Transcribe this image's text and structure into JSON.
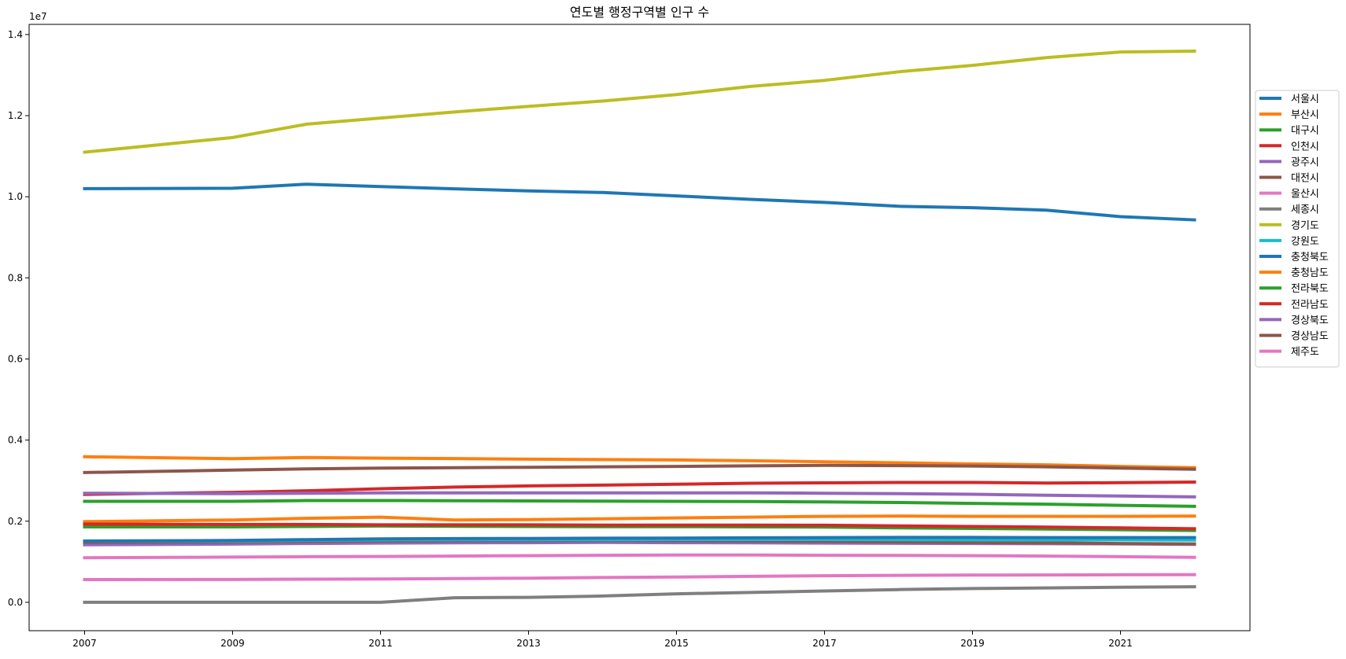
{
  "chart_data": {
    "type": "line",
    "title": "연도별 행정구역별 인구 수",
    "xlabel": "",
    "ylabel": "",
    "y_offset_text": "1e7",
    "xlim": [
      2006.25,
      2022.75
    ],
    "ylim": [
      -700000,
      14250000
    ],
    "x_ticks": [
      2007,
      2009,
      2011,
      2013,
      2015,
      2017,
      2019,
      2021
    ],
    "y_ticks": [
      {
        "value": 0,
        "label": "0.0"
      },
      {
        "value": 2000000,
        "label": "0.2"
      },
      {
        "value": 4000000,
        "label": "0.4"
      },
      {
        "value": 6000000,
        "label": "0.6"
      },
      {
        "value": 8000000,
        "label": "0.8"
      },
      {
        "value": 10000000,
        "label": "1.0"
      },
      {
        "value": 12000000,
        "label": "1.2"
      },
      {
        "value": 14000000,
        "label": "1.4"
      }
    ],
    "grid": false,
    "legend_position": "right",
    "x": [
      2007,
      2009,
      2010,
      2011,
      2012,
      2013,
      2014,
      2015,
      2016,
      2017,
      2018,
      2019,
      2020,
      2021,
      2022
    ],
    "series": [
      {
        "name": "서울시",
        "color": "#1f77b4",
        "values": [
          10200000,
          10210000,
          10310000,
          10250000,
          10195000,
          10145000,
          10105000,
          10020000,
          9935000,
          9860000,
          9765000,
          9730000,
          9670000,
          9510000,
          9430000
        ]
      },
      {
        "name": "부산시",
        "color": "#ff7f0e",
        "values": [
          3590000,
          3540000,
          3570000,
          3555000,
          3545000,
          3530000,
          3520000,
          3510000,
          3490000,
          3465000,
          3440000,
          3410000,
          3390000,
          3350000,
          3320000
        ]
      },
      {
        "name": "대구시",
        "color": "#2ca02c",
        "values": [
          2490000,
          2490000,
          2510000,
          2510000,
          2505000,
          2500000,
          2495000,
          2490000,
          2485000,
          2475000,
          2460000,
          2440000,
          2420000,
          2390000,
          2365000
        ]
      },
      {
        "name": "인천시",
        "color": "#d62728",
        "values": [
          2660000,
          2710000,
          2750000,
          2800000,
          2840000,
          2870000,
          2890000,
          2910000,
          2935000,
          2945000,
          2955000,
          2955000,
          2940000,
          2950000,
          2965000
        ]
      },
      {
        "name": "광주시",
        "color": "#9467bd",
        "values": [
          1420000,
          1435000,
          1450000,
          1460000,
          1465000,
          1470000,
          1475000,
          1470000,
          1465000,
          1460000,
          1455000,
          1450000,
          1445000,
          1440000,
          1430000
        ]
      },
      {
        "name": "대전시",
        "color": "#8c564b",
        "values": [
          1480000,
          1490000,
          1500000,
          1510000,
          1515000,
          1520000,
          1525000,
          1520000,
          1510000,
          1500000,
          1490000,
          1475000,
          1465000,
          1450000,
          1440000
        ]
      },
      {
        "name": "울산시",
        "color": "#e377c2",
        "values": [
          1100000,
          1115000,
          1125000,
          1130000,
          1140000,
          1150000,
          1160000,
          1165000,
          1165000,
          1160000,
          1155000,
          1150000,
          1140000,
          1125000,
          1110000
        ]
      },
      {
        "name": "세종시",
        "color": "#7f7f7f",
        "values": [
          0,
          0,
          0,
          0,
          113000,
          122000,
          156000,
          210000,
          243000,
          280000,
          314000,
          340000,
          355000,
          370000,
          383000
        ]
      },
      {
        "name": "경기도",
        "color": "#bcbd22",
        "values": [
          11100000,
          11460000,
          11790000,
          11940000,
          12090000,
          12230000,
          12360000,
          12520000,
          12720000,
          12870000,
          13080000,
          13240000,
          13430000,
          13570000,
          13590000
        ]
      },
      {
        "name": "강원도",
        "color": "#17becf",
        "values": [
          1510000,
          1510000,
          1530000,
          1540000,
          1545000,
          1545000,
          1545000,
          1550000,
          1550000,
          1550000,
          1545000,
          1540000,
          1540000,
          1540000,
          1535000
        ]
      },
      {
        "name": "충청북도",
        "color": "#1f77b4",
        "values": [
          1510000,
          1525000,
          1545000,
          1565000,
          1570000,
          1575000,
          1580000,
          1585000,
          1590000,
          1595000,
          1600000,
          1600000,
          1595000,
          1595000,
          1595000
        ]
      },
      {
        "name": "충청남도",
        "color": "#ff7f0e",
        "values": [
          1990000,
          2030000,
          2070000,
          2100000,
          2030000,
          2040000,
          2060000,
          2080000,
          2100000,
          2120000,
          2125000,
          2120000,
          2120000,
          2120000,
          2125000
        ]
      },
      {
        "name": "전라북도",
        "color": "#2ca02c",
        "values": [
          1860000,
          1860000,
          1870000,
          1880000,
          1875000,
          1870000,
          1865000,
          1865000,
          1860000,
          1855000,
          1835000,
          1820000,
          1805000,
          1790000,
          1770000
        ]
      },
      {
        "name": "전라남도",
        "color": "#d62728",
        "values": [
          1930000,
          1920000,
          1920000,
          1910000,
          1910000,
          1910000,
          1905000,
          1905000,
          1905000,
          1900000,
          1885000,
          1870000,
          1855000,
          1835000,
          1815000
        ]
      },
      {
        "name": "경상북도",
        "color": "#9467bd",
        "values": [
          2690000,
          2680000,
          2690000,
          2700000,
          2700000,
          2700000,
          2700000,
          2700000,
          2700000,
          2690000,
          2680000,
          2665000,
          2640000,
          2620000,
          2600000
        ]
      },
      {
        "name": "경상남도",
        "color": "#8c564b",
        "values": [
          3200000,
          3260000,
          3290000,
          3310000,
          3320000,
          3330000,
          3340000,
          3350000,
          3365000,
          3375000,
          3370000,
          3360000,
          3340000,
          3310000,
          3280000
        ]
      },
      {
        "name": "제주도",
        "color": "#e377c2",
        "values": [
          560000,
          562000,
          570000,
          575000,
          585000,
          595000,
          610000,
          625000,
          640000,
          655000,
          665000,
          670000,
          675000,
          678000,
          680000
        ]
      }
    ]
  }
}
